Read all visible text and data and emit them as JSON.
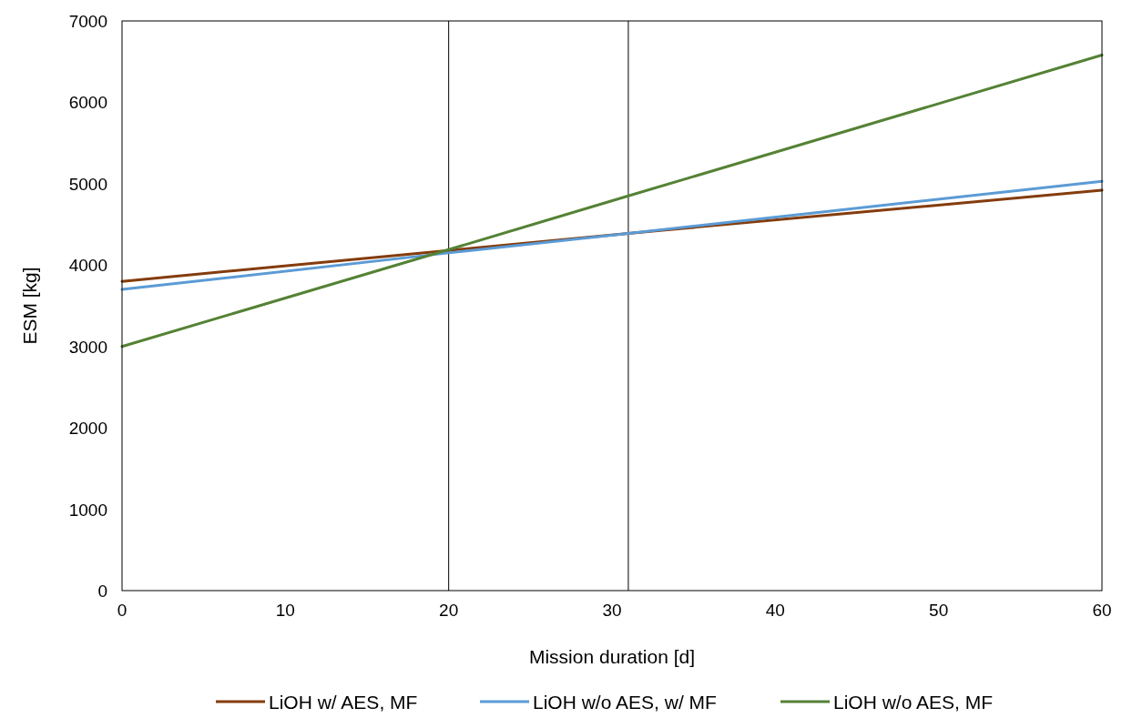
{
  "chart_data": {
    "type": "line",
    "xlabel": "Mission duration [d]",
    "ylabel": "ESM [kg]",
    "x": [
      0,
      20,
      31,
      60
    ],
    "series": [
      {
        "name": "LiOH w/ AES, MF",
        "color": "#843c0c",
        "values": [
          3800,
          4180,
          4390,
          4920
        ]
      },
      {
        "name": "LiOH w/o AES, w/ MF",
        "color": "#5b9bd5",
        "values": [
          3700,
          4150,
          4390,
          5030
        ]
      },
      {
        "name": "LiOH w/o AES, MF",
        "color": "#548235",
        "values": [
          3000,
          4190,
          4850,
          6580
        ]
      }
    ],
    "xlim": [
      0,
      60
    ],
    "xticks": [
      0,
      10,
      20,
      30,
      40,
      50,
      60
    ],
    "ylim": [
      0,
      7000
    ],
    "yticks": [
      0,
      1000,
      2000,
      3000,
      4000,
      5000,
      6000,
      7000
    ],
    "ref_lines": [
      {
        "axis": "x",
        "value": 20,
        "color": "#000000"
      },
      {
        "axis": "x",
        "value": 31,
        "color": "#000000"
      }
    ],
    "grid": false,
    "legend": "bottom",
    "marker": "none",
    "line_style": "solid"
  }
}
